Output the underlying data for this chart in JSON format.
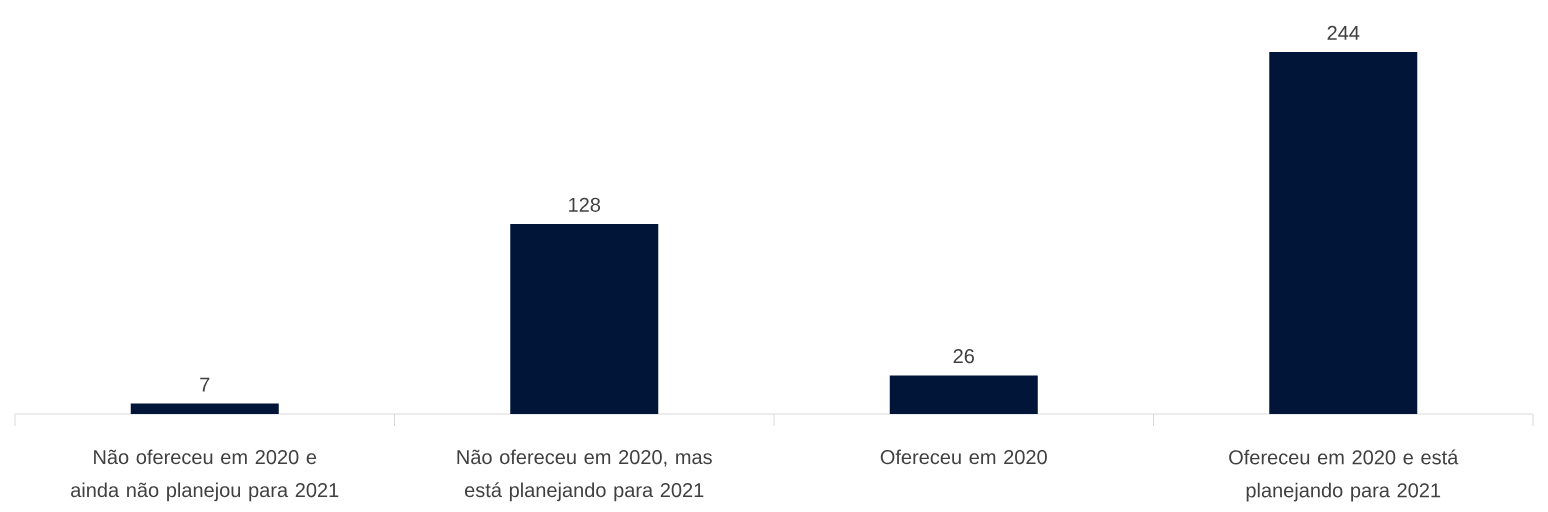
{
  "chart_data": {
    "type": "bar",
    "categories": [
      "Não ofereceu em 2020 e ainda não planejou para 2021",
      "Não ofereceu em 2020, mas está planejando para 2021",
      "Ofereceu em 2020",
      "Ofereceu em 2020 e está planejando para 2021"
    ],
    "values": [
      7,
      128,
      26,
      244
    ],
    "color": "#001537",
    "data_labels": true
  }
}
